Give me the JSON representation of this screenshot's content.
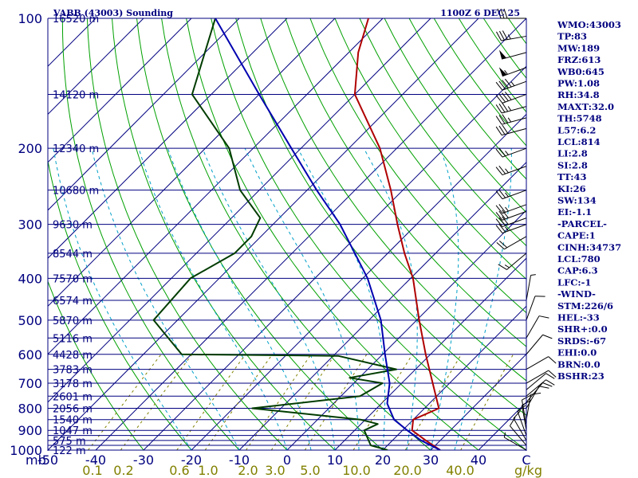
{
  "header": {
    "station": "VABB (43003) Sounding",
    "time": "1100Z  6 DEC 25"
  },
  "chart_data": {
    "type": "line",
    "title": "VABB (43003) Sounding",
    "subtitle": "1100Z  6 DEC 25",
    "xlabel": "",
    "ylabel": "",
    "xlim": [
      -50,
      50
    ],
    "ylim": [
      1000,
      100
    ],
    "skew_deg_per_decade": 90,
    "temp_ticks": [
      {
        "v": -50,
        "label": "-50"
      },
      {
        "v": -40,
        "label": "-40"
      },
      {
        "v": -30,
        "label": "-30"
      },
      {
        "v": -20,
        "label": "-20"
      },
      {
        "v": -10,
        "label": "-10"
      },
      {
        "v": 0,
        "label": "0"
      },
      {
        "v": 10,
        "label": "10"
      },
      {
        "v": 20,
        "label": "20"
      },
      {
        "v": 30,
        "label": "30"
      },
      {
        "v": 40,
        "label": "40"
      },
      {
        "v": 50,
        "label": "C"
      }
    ],
    "mb_label": "mb",
    "pressure_labels": [
      {
        "p": 100,
        "label": "100"
      },
      {
        "p": 200,
        "label": "200"
      },
      {
        "p": 300,
        "label": "300"
      },
      {
        "p": 400,
        "label": "400"
      },
      {
        "p": 500,
        "label": "500"
      },
      {
        "p": 600,
        "label": "600"
      },
      {
        "p": 700,
        "label": "700"
      },
      {
        "p": 800,
        "label": "800"
      },
      {
        "p": 900,
        "label": "900"
      },
      {
        "p": 1000,
        "label": "1000"
      }
    ],
    "isobars": [
      100,
      150,
      200,
      250,
      300,
      350,
      400,
      450,
      500,
      550,
      600,
      650,
      700,
      750,
      800,
      850,
      900,
      925,
      950,
      975,
      1000
    ],
    "heights": [
      {
        "p": 100,
        "label": "16520 m"
      },
      {
        "p": 150,
        "label": "14120 m"
      },
      {
        "p": 200,
        "label": "12340 m"
      },
      {
        "p": 250,
        "label": "10680 m"
      },
      {
        "p": 300,
        "label": "9630 m"
      },
      {
        "p": 350,
        "label": "8544 m"
      },
      {
        "p": 400,
        "label": "7570 m"
      },
      {
        "p": 450,
        "label": "6574 m"
      },
      {
        "p": 500,
        "label": "5870 m"
      },
      {
        "p": 550,
        "label": "5116 m"
      },
      {
        "p": 600,
        "label": "4428 m"
      },
      {
        "p": 650,
        "label": "3783 m"
      },
      {
        "p": 700,
        "label": "3178 m"
      },
      {
        "p": 750,
        "label": "2601 m"
      },
      {
        "p": 800,
        "label": "2056 m"
      },
      {
        "p": 850,
        "label": "1540 m"
      },
      {
        "p": 900,
        "label": "1047 m"
      },
      {
        "p": 950,
        "label": "575 m"
      },
      {
        "p": 1000,
        "label": "122 m"
      }
    ],
    "mixing_ratio_labels": [
      "0.1",
      "0.2",
      "0.6",
      "1.0",
      "2.0",
      "3.0",
      "5.0",
      "10.0",
      "20.0",
      "40.0"
    ],
    "mixing_ratio_unit": "g/kg",
    "series": [
      {
        "name": "temperature",
        "color": "#b00000",
        "points": [
          {
            "p": 1000,
            "t": 32.0
          },
          {
            "p": 950,
            "t": 27.0
          },
          {
            "p": 900,
            "t": 22.0
          },
          {
            "p": 850,
            "t": 20.0
          },
          {
            "p": 800,
            "t": 23.0
          },
          {
            "p": 700,
            "t": 16.5
          },
          {
            "p": 600,
            "t": 9.0
          },
          {
            "p": 500,
            "t": 0.5
          },
          {
            "p": 400,
            "t": -9.5
          },
          {
            "p": 350,
            "t": -16.5
          },
          {
            "p": 300,
            "t": -24.0
          },
          {
            "p": 250,
            "t": -32.5
          },
          {
            "p": 200,
            "t": -43.5
          },
          {
            "p": 150,
            "t": -60.0
          },
          {
            "p": 120,
            "t": -68.0
          },
          {
            "p": 100,
            "t": -73.0
          }
        ]
      },
      {
        "name": "dewpoint",
        "color": "#003c00",
        "points": [
          {
            "p": 1000,
            "t": 21.0
          },
          {
            "p": 975,
            "t": 16.5
          },
          {
            "p": 900,
            "t": 12.0
          },
          {
            "p": 870,
            "t": 13.5
          },
          {
            "p": 850,
            "t": 9.0
          },
          {
            "p": 800,
            "t": -16.0
          },
          {
            "p": 750,
            "t": 4.0
          },
          {
            "p": 700,
            "t": 6.0
          },
          {
            "p": 680,
            "t": -2.0
          },
          {
            "p": 650,
            "t": 6.0
          },
          {
            "p": 605,
            "t": -9.0
          },
          {
            "p": 600,
            "t": -42.0
          },
          {
            "p": 500,
            "t": -55.0
          },
          {
            "p": 400,
            "t": -56.0
          },
          {
            "p": 350,
            "t": -52.0
          },
          {
            "p": 320,
            "t": -52.0
          },
          {
            "p": 290,
            "t": -54.0
          },
          {
            "p": 250,
            "t": -64.0
          },
          {
            "p": 200,
            "t": -75.0
          },
          {
            "p": 150,
            "t": -94.0
          },
          {
            "p": 100,
            "t": -105.0
          }
        ]
      },
      {
        "name": "parcel",
        "color": "#0000b0",
        "points": [
          {
            "p": 1000,
            "t": 32.0
          },
          {
            "p": 950,
            "t": 26.0
          },
          {
            "p": 900,
            "t": 21.0
          },
          {
            "p": 850,
            "t": 16.0
          },
          {
            "p": 780,
            "t": 11.2
          },
          {
            "p": 700,
            "t": 7.5
          },
          {
            "p": 600,
            "t": 0.5
          },
          {
            "p": 500,
            "t": -7.5
          },
          {
            "p": 400,
            "t": -19.0
          },
          {
            "p": 300,
            "t": -36.0
          },
          {
            "p": 250,
            "t": -48.0
          },
          {
            "p": 200,
            "t": -62.0
          },
          {
            "p": 150,
            "t": -80.0
          },
          {
            "p": 100,
            "t": -105.0
          }
        ]
      }
    ],
    "wind_barbs": [
      {
        "p": 1000,
        "dir": 300,
        "spd": 5
      },
      {
        "p": 975,
        "dir": 320,
        "spd": 10
      },
      {
        "p": 950,
        "dir": 330,
        "spd": 10
      },
      {
        "p": 925,
        "dir": 340,
        "spd": 10
      },
      {
        "p": 900,
        "dir": 350,
        "spd": 10
      },
      {
        "p": 875,
        "dir": 350,
        "spd": 10
      },
      {
        "p": 850,
        "dir": 10,
        "spd": 10
      },
      {
        "p": 800,
        "dir": 30,
        "spd": 10
      },
      {
        "p": 775,
        "dir": 40,
        "spd": 10
      },
      {
        "p": 750,
        "dir": 50,
        "spd": 10
      },
      {
        "p": 725,
        "dir": 50,
        "spd": 10
      },
      {
        "p": 700,
        "dir": 60,
        "spd": 10
      },
      {
        "p": 650,
        "dir": 60,
        "spd": 10
      },
      {
        "p": 600,
        "dir": 40,
        "spd": 10
      },
      {
        "p": 550,
        "dir": 30,
        "spd": 10
      },
      {
        "p": 500,
        "dir": 20,
        "spd": 10
      },
      {
        "p": 450,
        "dir": 10,
        "spd": 5
      },
      {
        "p": 350,
        "dir": 230,
        "spd": 15
      },
      {
        "p": 320,
        "dir": 240,
        "spd": 20
      },
      {
        "p": 300,
        "dir": 250,
        "spd": 25
      },
      {
        "p": 290,
        "dir": 250,
        "spd": 30
      },
      {
        "p": 280,
        "dir": 250,
        "spd": 30
      },
      {
        "p": 270,
        "dir": 250,
        "spd": 25
      },
      {
        "p": 250,
        "dir": 250,
        "spd": 25
      },
      {
        "p": 220,
        "dir": 250,
        "spd": 25
      },
      {
        "p": 200,
        "dir": 250,
        "spd": 25
      },
      {
        "p": 180,
        "dir": 255,
        "spd": 30
      },
      {
        "p": 170,
        "dir": 255,
        "spd": 35
      },
      {
        "p": 160,
        "dir": 255,
        "spd": 35
      },
      {
        "p": 150,
        "dir": 250,
        "spd": 40
      },
      {
        "p": 140,
        "dir": 250,
        "spd": 45
      },
      {
        "p": 130,
        "dir": 250,
        "spd": 55
      },
      {
        "p": 120,
        "dir": 255,
        "spd": 50
      },
      {
        "p": 110,
        "dir": 260,
        "spd": 35
      },
      {
        "p": 100,
        "dir": 270,
        "spd": 30
      }
    ]
  },
  "stats": [
    "WMO:43003",
    "TP:83",
    "MW:189",
    "FRZ:613",
    "WB0:645",
    "PW:1.08",
    "RH:34.8",
    "MAXT:32.0",
    "TH:5748",
    "L57:6.2",
    "LCL:814",
    "LI:2.8",
    "SI:2.8",
    "TT:43",
    "KI:26",
    "SW:134",
    "EI:-1.1",
    "-PARCEL-",
    "CAPE:1",
    "CINH:34737",
    "LCL:780",
    "CAP:6.3",
    "LFC:-1",
    "-WIND-",
    "STM:226/6",
    "HEL:-33",
    "SHR+:0.0",
    "SRDS:-67",
    "EHI:0.0",
    "BRN:0.0",
    "BSHR:23"
  ],
  "colors": {
    "frame": "#000080",
    "isotherm": "#000080",
    "dry_adiabat": "#00a000",
    "moist_adiabat": "#00a0c8",
    "mixing_ratio": "#808000",
    "temperature": "#b00000",
    "dewpoint": "#003c00",
    "parcel": "#0000b0",
    "wind": "#000000"
  }
}
